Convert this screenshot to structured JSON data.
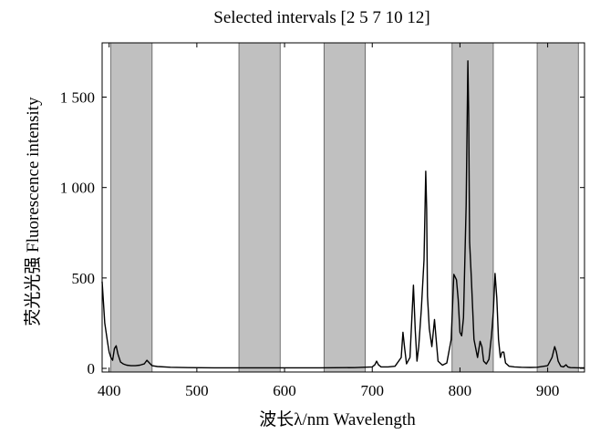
{
  "chart_data": {
    "type": "line",
    "title": "Selected intervals [2 5 7 10 12]",
    "xlabel": "波长λ/nm Wavelength",
    "ylabel": "荧光光强 Fluorescence intensity",
    "xlim": [
      392,
      942
    ],
    "ylim": [
      -20,
      1800
    ],
    "x_ticks": [
      400,
      500,
      600,
      700,
      800,
      900
    ],
    "y_ticks": [
      0,
      500,
      1000,
      1500
    ],
    "x_tick_labels": [
      "400",
      "500",
      "600",
      "700",
      "800",
      "900"
    ],
    "y_tick_labels": [
      "0",
      "500",
      "1 000",
      "1 500"
    ],
    "grid": false,
    "highlight_color": "#c0c0c0",
    "line_color": "#000000",
    "selected_intervals": [
      {
        "from": 402,
        "to": 449
      },
      {
        "from": 548,
        "to": 595
      },
      {
        "from": 645,
        "to": 692
      },
      {
        "from": 791,
        "to": 838
      },
      {
        "from": 888,
        "to": 935
      }
    ],
    "series": [
      {
        "x": [
          392,
          395,
          398,
          400,
          402,
          404,
          406,
          408,
          410,
          413,
          416,
          420,
          425,
          430,
          435,
          440,
          443,
          446,
          449,
          455,
          470,
          490,
          520,
          560,
          600,
          640,
          680,
          700,
          703,
          705,
          707,
          710,
          718,
          726,
          733,
          735,
          737,
          739,
          743,
          747,
          749,
          751,
          753,
          756,
          759,
          761,
          762,
          763,
          765,
          768,
          771,
          773,
          775,
          780,
          785,
          790,
          793,
          796,
          798,
          800,
          802,
          804,
          807,
          809,
          810,
          811,
          813,
          816,
          820,
          823,
          825,
          827,
          830,
          833,
          836,
          838,
          840,
          842,
          844,
          846,
          848,
          850,
          852,
          856,
          862,
          870,
          880,
          888,
          900,
          905,
          908,
          910,
          912,
          915,
          918,
          921,
          923,
          926,
          935,
          942
        ],
        "y": [
          480,
          250,
          150,
          90,
          60,
          45,
          110,
          125,
          80,
          35,
          25,
          18,
          15,
          15,
          18,
          25,
          45,
          30,
          15,
          10,
          6,
          4,
          3,
          3,
          3,
          3,
          4,
          8,
          20,
          40,
          20,
          8,
          8,
          12,
          60,
          200,
          110,
          25,
          60,
          460,
          210,
          40,
          120,
          330,
          600,
          1090,
          880,
          400,
          220,
          120,
          270,
          150,
          40,
          18,
          30,
          160,
          520,
          490,
          380,
          200,
          180,
          280,
          900,
          1700,
          1400,
          700,
          500,
          160,
          60,
          150,
          120,
          40,
          25,
          50,
          180,
          310,
          525,
          390,
          160,
          60,
          90,
          90,
          30,
          12,
          8,
          6,
          5,
          6,
          15,
          60,
          120,
          90,
          40,
          12,
          8,
          20,
          8,
          4,
          3,
          3
        ]
      }
    ]
  }
}
